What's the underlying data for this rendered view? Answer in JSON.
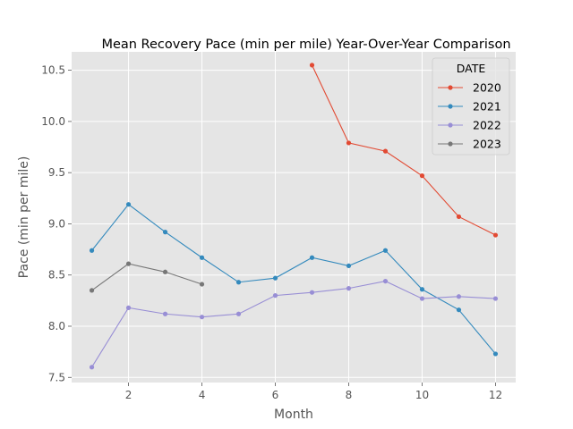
{
  "chart_data": {
    "type": "line",
    "title": "Mean Recovery Pace (min per mile) Year-Over-Year Comparison",
    "xlabel": "Month",
    "ylabel": "Pace (min per mile)",
    "xlim": [
      0.45,
      12.55
    ],
    "ylim": [
      7.45,
      10.68
    ],
    "xticks": [
      2,
      4,
      6,
      8,
      10,
      12
    ],
    "yticks": [
      7.5,
      8.0,
      8.5,
      9.0,
      9.5,
      10.0,
      10.5
    ],
    "grid": true,
    "legend": {
      "title": "DATE",
      "placement": "top-right"
    },
    "series": [
      {
        "name": "2020",
        "color": "#E24A33",
        "x": [
          7,
          8,
          9,
          10,
          11,
          12
        ],
        "y": [
          10.55,
          9.79,
          9.71,
          9.47,
          9.07,
          8.89
        ]
      },
      {
        "name": "2021",
        "color": "#348ABD",
        "x": [
          1,
          2,
          3,
          4,
          5,
          6,
          7,
          8,
          9,
          10,
          11,
          12
        ],
        "y": [
          8.74,
          9.19,
          8.92,
          8.67,
          8.43,
          8.47,
          8.67,
          8.59,
          8.74,
          8.36,
          8.16,
          7.73
        ]
      },
      {
        "name": "2022",
        "color": "#988ED5",
        "x": [
          1,
          2,
          3,
          4,
          5,
          6,
          7,
          8,
          9,
          10,
          11,
          12
        ],
        "y": [
          7.6,
          8.18,
          8.12,
          8.09,
          8.12,
          8.3,
          8.33,
          8.37,
          8.44,
          8.27,
          8.29,
          8.27
        ]
      },
      {
        "name": "2023",
        "color": "#777777",
        "x": [
          1,
          2,
          3,
          4
        ],
        "y": [
          8.35,
          8.61,
          8.53,
          8.41
        ]
      }
    ]
  }
}
